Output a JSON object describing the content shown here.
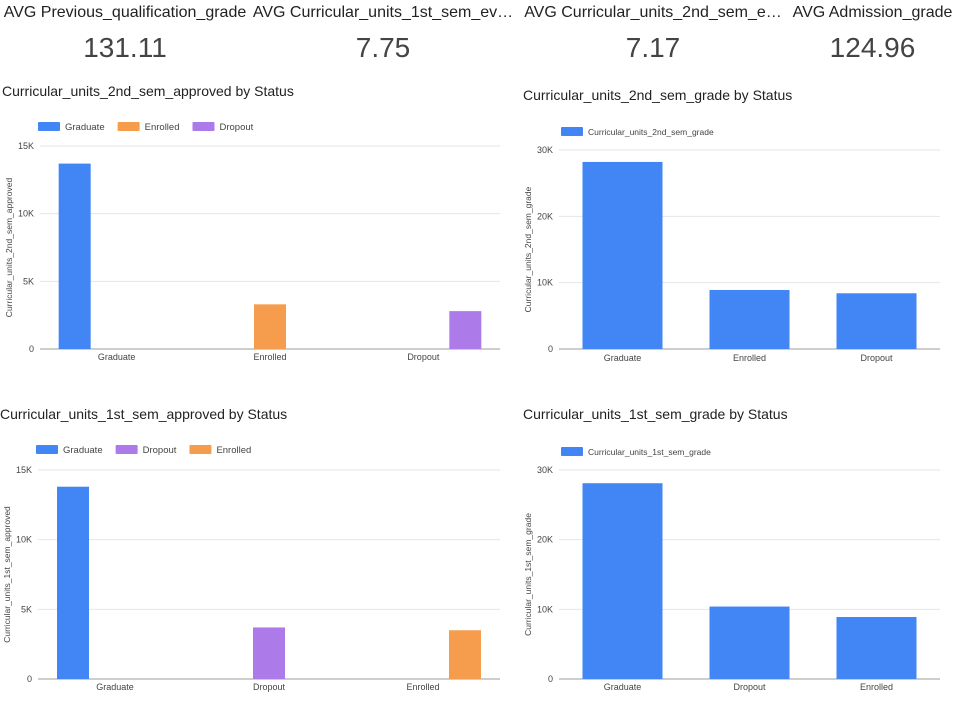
{
  "colors": {
    "graduate": "#4285f4",
    "enrolled": "#f59d4d",
    "dropout": "#ad7be9"
  },
  "scorecards": [
    {
      "label": "AVG Previous_qualification_grade",
      "value": "131.11"
    },
    {
      "label": "AVG Curricular_units_1st_sem_ev…",
      "value": "7.75"
    },
    {
      "label": "AVG Curricular_units_2nd_sem_e…",
      "value": "7.17"
    },
    {
      "label": "AVG Admission_grade",
      "value": "124.96"
    }
  ],
  "chart_data": [
    {
      "type": "bar",
      "title": "Curricular_units_2nd_sem_approved by Status",
      "ylabel": "Curricular_units_2nd_sem_approved",
      "xlabel": "",
      "categories": [
        "Graduate",
        "Enrolled",
        "Dropout"
      ],
      "series": [
        {
          "name": "Graduate",
          "color": "#4285f4",
          "values": [
            13700,
            null,
            null
          ]
        },
        {
          "name": "Enrolled",
          "color": "#f59d4d",
          "values": [
            null,
            3300,
            null
          ]
        },
        {
          "name": "Dropout",
          "color": "#ad7be9",
          "values": [
            null,
            null,
            2800
          ]
        }
      ],
      "ylim": [
        0,
        15000
      ],
      "yticks": [
        0,
        5000,
        10000,
        15000
      ],
      "ytick_labels": [
        "0",
        "5K",
        "10K",
        "15K"
      ],
      "grid": true,
      "legend": "top-left"
    },
    {
      "type": "bar",
      "title": "Curricular_units_2nd_sem_grade by Status",
      "ylabel": "Curricular_units_2nd_sem_grade",
      "xlabel": "",
      "categories": [
        "Graduate",
        "Enrolled",
        "Dropout"
      ],
      "series": [
        {
          "name": "Curricular_units_2nd_sem_grade",
          "color": "#4285f4",
          "values": [
            28200,
            8900,
            8400
          ]
        }
      ],
      "ylim": [
        0,
        30000
      ],
      "yticks": [
        0,
        10000,
        20000,
        30000
      ],
      "ytick_labels": [
        "0",
        "10K",
        "20K",
        "30K"
      ],
      "grid": true,
      "legend": "top-left"
    },
    {
      "type": "bar",
      "title": "Curricular_units_1st_sem_approved by Status",
      "ylabel": "Curricular_units_1st_sem_approved",
      "xlabel": "",
      "categories": [
        "Graduate",
        "Dropout",
        "Enrolled"
      ],
      "series": [
        {
          "name": "Graduate",
          "color": "#4285f4",
          "values": [
            13800,
            null,
            null
          ]
        },
        {
          "name": "Dropout",
          "color": "#ad7be9",
          "values": [
            null,
            3700,
            null
          ]
        },
        {
          "name": "Enrolled",
          "color": "#f59d4d",
          "values": [
            null,
            null,
            3500
          ]
        }
      ],
      "ylim": [
        0,
        15000
      ],
      "yticks": [
        0,
        5000,
        10000,
        15000
      ],
      "ytick_labels": [
        "0",
        "5K",
        "10K",
        "15K"
      ],
      "grid": true,
      "legend": "top-left"
    },
    {
      "type": "bar",
      "title": "Curricular_units_1st_sem_grade by Status",
      "ylabel": "Curricular_units_1st_sem_grade",
      "xlabel": "",
      "categories": [
        "Graduate",
        "Dropout",
        "Enrolled"
      ],
      "series": [
        {
          "name": "Curricular_units_1st_sem_grade",
          "color": "#4285f4",
          "values": [
            28100,
            10400,
            8900
          ]
        }
      ],
      "ylim": [
        0,
        30000
      ],
      "yticks": [
        0,
        10000,
        20000,
        30000
      ],
      "ytick_labels": [
        "0",
        "10K",
        "20K",
        "30K"
      ],
      "grid": true,
      "legend": "top-left"
    }
  ]
}
